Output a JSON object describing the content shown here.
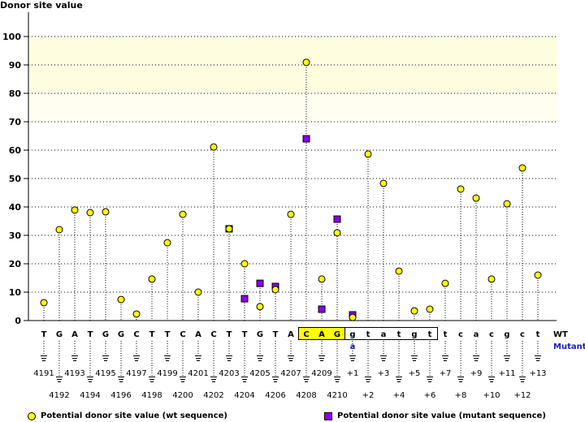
{
  "chart_data": {
    "type": "scatter",
    "title": "Donor site value",
    "ylabel": "Donor site value",
    "ylim": [
      0,
      100
    ],
    "yticks": [
      0,
      10,
      20,
      30,
      40,
      50,
      60,
      70,
      80,
      90,
      100
    ],
    "highlight_band": [
      70,
      100
    ],
    "positions": [
      "4191",
      "4192",
      "4193",
      "4194",
      "4195",
      "4196",
      "4197",
      "4198",
      "4199",
      "4200",
      "4201",
      "4202",
      "4203",
      "4204",
      "4205",
      "4206",
      "4207",
      "4208",
      "4209",
      "4210",
      "+1",
      "+2",
      "+3",
      "+4",
      "+5",
      "+6",
      "+7",
      "+8",
      "+9",
      "+10",
      "+11",
      "+12",
      "+13"
    ],
    "wt_sequence": [
      "T",
      "G",
      "A",
      "T",
      "G",
      "G",
      "C",
      "T",
      "T",
      "C",
      "A",
      "C",
      "T",
      "T",
      "G",
      "T",
      "A",
      "C",
      "A",
      "G",
      "g",
      "t",
      "a",
      "t",
      "g",
      "t",
      "t",
      "c",
      "a",
      "c",
      "g",
      "c",
      "t"
    ],
    "mutant_sequence": {
      "+1": "a"
    },
    "wt_row_label": "WT",
    "mutant_row_label": "Mutant",
    "exon_box": [
      "4208",
      "4210"
    ],
    "intron_box": [
      "+1",
      "+6"
    ],
    "series": [
      {
        "name": "Potential donor site value (wt sequence)",
        "marker": "circle",
        "color": "#ffff00",
        "values": [
          6.3,
          32,
          38.9,
          38,
          38.3,
          7.4,
          2.3,
          14.6,
          27.4,
          37.4,
          10,
          61.1,
          32.3,
          20,
          4.9,
          10.9,
          37.4,
          90.9,
          14.6,
          30.9,
          1.1,
          58.6,
          48.3,
          17.4,
          3.4,
          4,
          13.1,
          46.3,
          43.1,
          14.6,
          41.1,
          53.7,
          16
        ]
      },
      {
        "name": "Potential donor site value (mutant sequence)",
        "marker": "square",
        "color": "#8a00e6",
        "values": {
          "4203": 32.3,
          "4204": 7.7,
          "4205": 13.1,
          "4206": 12,
          "4208": 64,
          "4209": 4,
          "4210": 35.7,
          "+1": 2
        }
      }
    ],
    "legend": "bottom"
  }
}
